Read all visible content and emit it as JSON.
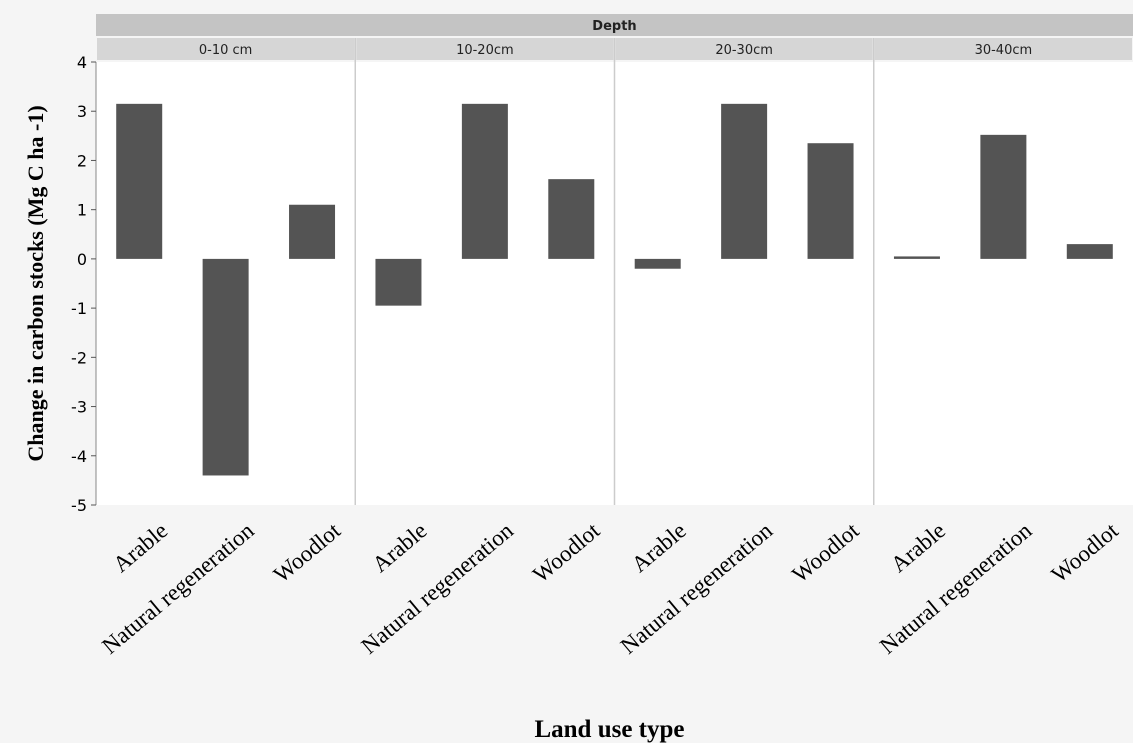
{
  "chart_data": {
    "type": "bar",
    "facet_title": "Depth",
    "panels": [
      {
        "label": "0-10 cm",
        "categories": [
          "Arable",
          "Natural regeneration",
          "Woodlot"
        ],
        "values": [
          3.15,
          -4.4,
          1.1
        ]
      },
      {
        "label": "10-20cm",
        "categories": [
          "Arable",
          "Natural regeneration",
          "Woodlot"
        ],
        "values": [
          -0.95,
          3.15,
          1.62
        ]
      },
      {
        "label": "20-30cm",
        "categories": [
          "Arable",
          "Natural regeneration",
          "Woodlot"
        ],
        "values": [
          -0.2,
          3.15,
          2.35
        ]
      },
      {
        "label": "30-40cm",
        "categories": [
          "Arable",
          "Natural regeneration",
          "Woodlot"
        ],
        "values": [
          0.05,
          2.52,
          0.3
        ]
      }
    ],
    "ylabel": "Change in carbon stocks (Mg C ha -1)",
    "xlabel": "Land use type",
    "ylim": [
      -5,
      4
    ],
    "yticks": [
      "4",
      "3",
      "2",
      "1",
      "0",
      "-1",
      "-2",
      "-3",
      "-4",
      "-5"
    ],
    "grid": false,
    "colors": {
      "bar": "#545454",
      "header_bg": "#d6d6d6",
      "header_title_bg": "#c4c4c4",
      "plot_bg": "#f5f5f5",
      "panel_bg": "#ffffff",
      "divider": "#cccccc"
    }
  }
}
